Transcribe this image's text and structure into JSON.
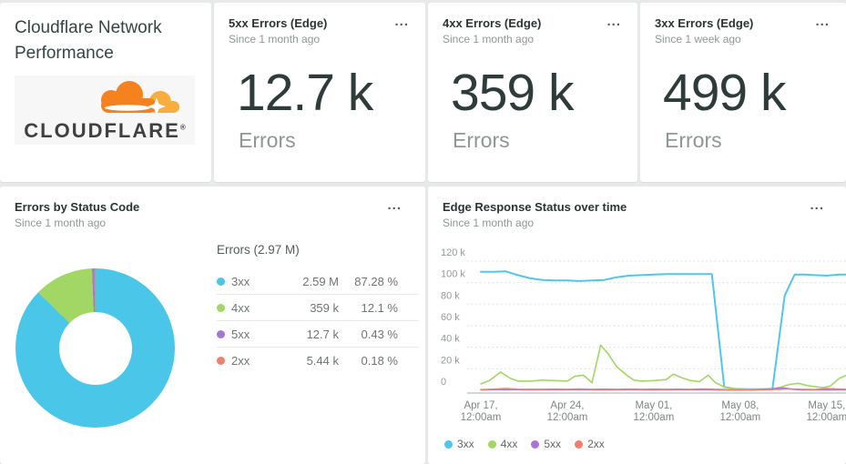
{
  "ui": {
    "menu_icon": "..."
  },
  "header_card": {
    "title": "Cloudflare Network Performance",
    "logo_word": "CLOUDFLARE",
    "logo_reg": "®"
  },
  "kpi_cards": [
    {
      "title": "5xx Errors (Edge)",
      "subtitle": "Since 1 month ago",
      "value": "12.7 k",
      "caption": "Errors"
    },
    {
      "title": "4xx Errors (Edge)",
      "subtitle": "Since 1 month ago",
      "value": "359 k",
      "caption": "Errors"
    },
    {
      "title": "3xx Errors (Edge)",
      "subtitle": "Since 1 week ago",
      "value": "499 k",
      "caption": "Errors"
    }
  ],
  "donut_card": {
    "title": "Errors by Status Code",
    "subtitle": "Since 1 month ago",
    "table": {
      "header": "Errors (2.97 M)",
      "rows": [
        {
          "label": "3xx",
          "value": "2.59 M",
          "percent": "87.28 %",
          "color": "#4AC6E8"
        },
        {
          "label": "4xx",
          "value": "359 k",
          "percent": "12.1 %",
          "color": "#A2D765"
        },
        {
          "label": "5xx",
          "value": "12.7 k",
          "percent": "0.43 %",
          "color": "#A875D6"
        },
        {
          "label": "2xx",
          "value": "5.44 k",
          "percent": "0.18 %",
          "color": "#F0806B"
        }
      ]
    },
    "chart_data": {
      "type": "pie",
      "donut": true,
      "title": "Errors by Status Code",
      "total_label": "Errors (2.97 M)",
      "start_angle_deg": 0,
      "direction": "clockwise",
      "slices": [
        {
          "name": "3xx",
          "value": 2590000,
          "percent": 87.28,
          "color": "#4AC6E8"
        },
        {
          "name": "4xx",
          "value": 359000,
          "percent": 12.1,
          "color": "#A2D765"
        },
        {
          "name": "5xx",
          "value": 12700,
          "percent": 0.43,
          "color": "#A875D6"
        },
        {
          "name": "2xx",
          "value": 5440,
          "percent": 0.18,
          "color": "#F0806B"
        }
      ]
    }
  },
  "line_card": {
    "title": "Edge Response Status over time",
    "subtitle": "Since 1 month ago",
    "chart_data": {
      "type": "line",
      "title": "Edge Response Status over time",
      "unit": "errors (k)",
      "ylim": [
        0,
        120
      ],
      "grid": "dotted horizontal",
      "legend_position": "bottom",
      "y_ticks": [
        {
          "label": "120 k",
          "value": 120
        },
        {
          "label": "100 k",
          "value": 100
        },
        {
          "label": "80 k",
          "value": 80
        },
        {
          "label": "60 k",
          "value": 60
        },
        {
          "label": "40 k",
          "value": 40
        },
        {
          "label": "20 k",
          "value": 20
        },
        {
          "label": "0",
          "value": 0
        }
      ],
      "x_unit": "days since Apr 17 12:00am",
      "x_ticks": [
        {
          "day": 0,
          "line1": "Apr 17,",
          "line2": "12:00am"
        },
        {
          "day": 7,
          "line1": "Apr 24,",
          "line2": "12:00am"
        },
        {
          "day": 14,
          "line1": "May 01,",
          "line2": "12:00am"
        },
        {
          "day": 21,
          "line1": "May 08,",
          "line2": "12:00am"
        },
        {
          "day": 28,
          "line1": "May 15,",
          "line2": "12:00am"
        }
      ],
      "series": [
        {
          "name": "3xx",
          "color": "#4EC7EA",
          "points": [
            [
              0,
              110
            ],
            [
              1,
              110
            ],
            [
              2,
              110.5
            ],
            [
              3,
              107
            ],
            [
              4,
              104
            ],
            [
              5,
              102.5
            ],
            [
              6,
              102
            ],
            [
              7,
              102
            ],
            [
              8,
              101.5
            ],
            [
              9,
              102
            ],
            [
              10,
              102.5
            ],
            [
              11,
              105
            ],
            [
              12,
              106.5
            ],
            [
              13,
              107
            ],
            [
              14,
              107.5
            ],
            [
              15,
              108
            ],
            [
              16,
              108
            ],
            [
              17,
              108
            ],
            [
              18,
              108
            ],
            [
              18.7,
              108
            ],
            [
              19.7,
              3
            ],
            [
              20.5,
              1.5
            ],
            [
              21.5,
              1
            ],
            [
              22.6,
              1
            ],
            [
              23.6,
              1
            ],
            [
              24.6,
              88
            ],
            [
              25.4,
              107.5
            ],
            [
              26.2,
              107.5
            ],
            [
              27,
              107
            ],
            [
              28,
              106.5
            ],
            [
              29,
              107.5
            ],
            [
              29.6,
              107.5
            ]
          ]
        },
        {
          "name": "4xx",
          "color": "#A2D765",
          "points": [
            [
              0,
              6
            ],
            [
              0.7,
              9
            ],
            [
              1.6,
              17
            ],
            [
              2.4,
              11
            ],
            [
              3,
              8.5
            ],
            [
              4,
              8.5
            ],
            [
              5,
              9.5
            ],
            [
              6,
              9
            ],
            [
              7,
              8.5
            ],
            [
              7.6,
              13
            ],
            [
              8.3,
              14
            ],
            [
              9,
              7
            ],
            [
              9.7,
              42
            ],
            [
              10.3,
              34
            ],
            [
              11,
              22
            ],
            [
              11.8,
              14
            ],
            [
              12.4,
              9.5
            ],
            [
              13,
              8.5
            ],
            [
              14,
              9
            ],
            [
              15,
              10
            ],
            [
              15.6,
              15
            ],
            [
              16.3,
              11.5
            ],
            [
              17,
              9
            ],
            [
              17.7,
              8
            ],
            [
              18.4,
              14
            ],
            [
              19,
              7
            ],
            [
              19.7,
              3
            ],
            [
              20.5,
              1.5
            ],
            [
              21.5,
              1
            ],
            [
              22.6,
              1
            ],
            [
              23.6,
              1.2
            ],
            [
              24.3,
              3
            ],
            [
              25,
              5.5
            ],
            [
              25.7,
              6.5
            ],
            [
              26.4,
              4.5
            ],
            [
              27,
              3.5
            ],
            [
              27.7,
              2.5
            ],
            [
              28.3,
              4
            ],
            [
              29,
              11
            ],
            [
              29.6,
              14
            ]
          ]
        },
        {
          "name": "5xx",
          "color": "#A875D6",
          "points": [
            [
              0,
              0.4
            ],
            [
              2,
              0.8
            ],
            [
              4,
              0.5
            ],
            [
              6,
              0.6
            ],
            [
              8,
              0.6
            ],
            [
              10,
              0.5
            ],
            [
              12,
              0.6
            ],
            [
              14,
              0.5
            ],
            [
              16,
              0.6
            ],
            [
              18,
              0.6
            ],
            [
              20,
              0.3
            ],
            [
              22,
              0.3
            ],
            [
              23.8,
              1.6
            ],
            [
              24.5,
              2.2
            ],
            [
              25.2,
              1
            ],
            [
              26,
              0.5
            ],
            [
              27,
              0.5
            ],
            [
              28,
              0.4
            ],
            [
              29.6,
              0.4
            ]
          ]
        },
        {
          "name": "2xx",
          "color": "#F0806B",
          "points": [
            [
              0,
              0.6
            ],
            [
              1,
              1
            ],
            [
              2,
              1.6
            ],
            [
              3,
              1
            ],
            [
              4,
              0.9
            ],
            [
              5,
              0.9
            ],
            [
              6,
              1.1
            ],
            [
              7,
              0.9
            ],
            [
              8,
              1.3
            ],
            [
              9,
              0.9
            ],
            [
              10,
              1.1
            ],
            [
              11,
              0.9
            ],
            [
              12,
              1.1
            ],
            [
              13,
              0.9
            ],
            [
              14,
              1.1
            ],
            [
              15,
              0.9
            ],
            [
              16,
              1.1
            ],
            [
              17,
              0.9
            ],
            [
              18,
              1.3
            ],
            [
              19,
              0.9
            ],
            [
              20,
              0.6
            ],
            [
              21,
              0.5
            ],
            [
              22,
              0.5
            ],
            [
              23,
              0.5
            ],
            [
              24,
              0.9
            ],
            [
              25,
              1.3
            ],
            [
              26,
              0.9
            ],
            [
              27,
              0.7
            ],
            [
              28,
              1.6
            ],
            [
              29,
              1.1
            ],
            [
              29.6,
              0.9
            ]
          ]
        }
      ]
    }
  }
}
